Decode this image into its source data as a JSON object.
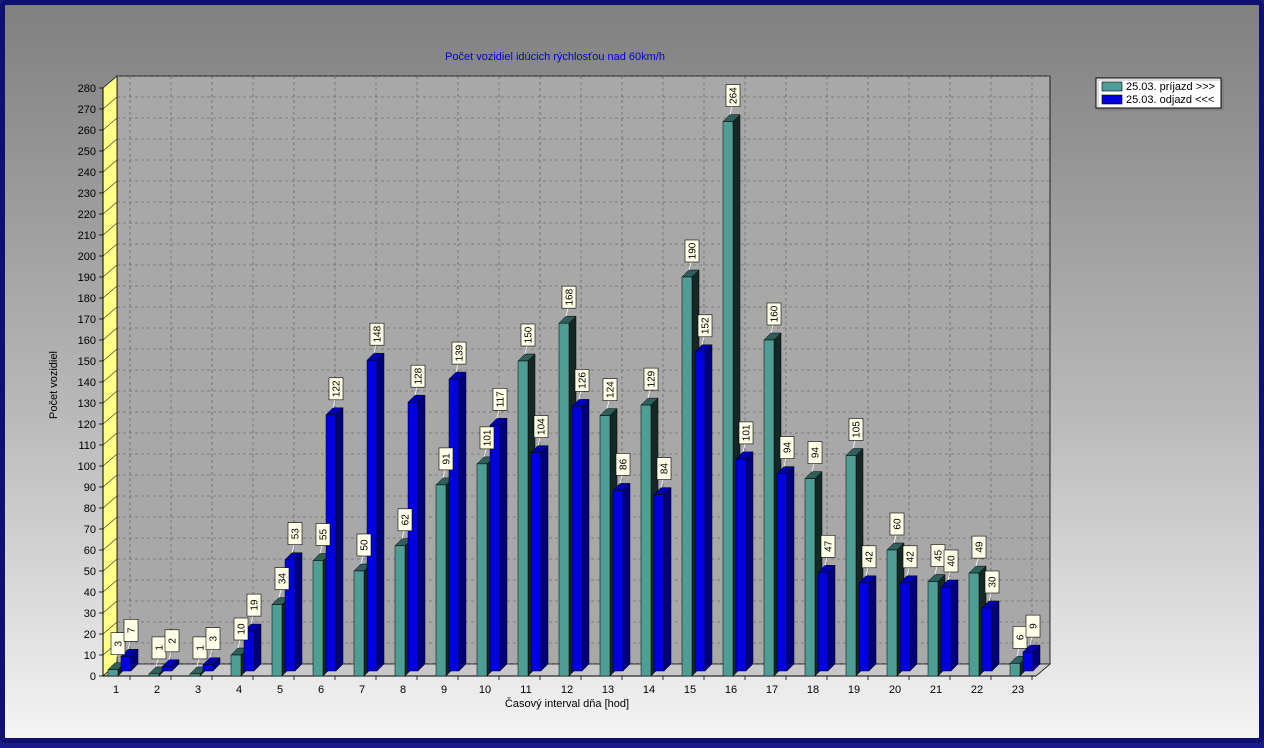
{
  "chart_data": {
    "type": "bar",
    "title": "Počet vozidiel idúcich rýchlosťou nad 60km/h",
    "xlabel": "Časový interval dňa [hod]",
    "ylabel": "Počet vozidiel",
    "ylim": [
      0,
      280
    ],
    "ytick_step": 10,
    "grid": true,
    "legend_position": "top-right",
    "categories": [
      "1",
      "2",
      "3",
      "4",
      "5",
      "6",
      "7",
      "8",
      "9",
      "10",
      "11",
      "12",
      "13",
      "14",
      "15",
      "16",
      "17",
      "18",
      "19",
      "20",
      "21",
      "22",
      "23"
    ],
    "series": [
      {
        "name": "25.03.  príjazd >>>",
        "color": "#4e9e96",
        "values": [
          3,
          1,
          1,
          10,
          34,
          55,
          50,
          62,
          91,
          101,
          150,
          168,
          124,
          129,
          190,
          264,
          160,
          94,
          105,
          60,
          45,
          49,
          6
        ]
      },
      {
        "name": "25.03.  odjazd <<<",
        "color": "#0000e0",
        "values": [
          7,
          2,
          3,
          19,
          53,
          122,
          148,
          128,
          139,
          117,
          104,
          126,
          86,
          84,
          152,
          101,
          94,
          47,
          42,
          42,
          40,
          30,
          9
        ]
      }
    ]
  }
}
